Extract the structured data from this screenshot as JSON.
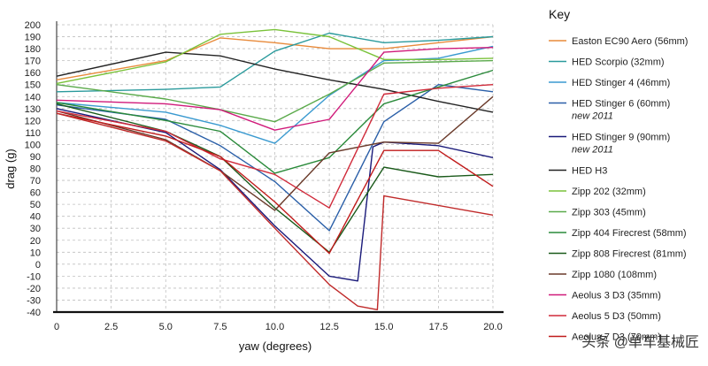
{
  "chart_data": {
    "type": "line",
    "title": "",
    "xlabel": "yaw (degrees)",
    "ylabel": "drag (g)",
    "xlim": [
      0,
      20
    ],
    "ylim": [
      -40,
      200
    ],
    "x_ticks": [
      "0",
      "2.5",
      "5.0",
      "7.5",
      "10.0",
      "12.5",
      "15.0",
      "17.5",
      "20.0"
    ],
    "y_ticks": [
      "200",
      "190",
      "180",
      "170",
      "160",
      "150",
      "140",
      "130",
      "120",
      "110",
      "100",
      "90",
      "80",
      "70",
      "60",
      "50",
      "40",
      "30",
      "20",
      "10",
      "0",
      "-10",
      "-20",
      "-30",
      "-40"
    ],
    "grid": true,
    "legend_title": "Key",
    "legend_position": "right",
    "series": [
      {
        "name": "Easton EC90 Aero (56mm)",
        "color": "#e88a3a",
        "x": [
          0,
          5,
          7.5,
          10,
          12.5,
          15,
          17.5,
          20
        ],
        "values": [
          154,
          170,
          189,
          185,
          180,
          180,
          185,
          190
        ]
      },
      {
        "name": "HED Scorpio (32mm)",
        "color": "#2a9a9c",
        "x": [
          0,
          5,
          7.5,
          10,
          12.5,
          15,
          17.5,
          20
        ],
        "values": [
          144,
          146,
          148,
          178,
          193,
          185,
          187,
          190
        ]
      },
      {
        "name": "HED Stinger 4 (46mm)",
        "color": "#3a9ad0",
        "x": [
          0,
          5,
          7.5,
          10,
          12.5,
          15,
          17.5,
          20
        ],
        "values": [
          135,
          127,
          116,
          101,
          141,
          170,
          172,
          182
        ]
      },
      {
        "name": "HED Stinger 6 (60mm)",
        "note": "new 2011",
        "color": "#2a5fa8",
        "x": [
          0,
          5,
          7.5,
          10,
          12.5,
          15,
          17.5,
          20
        ],
        "values": [
          133,
          121,
          99,
          69,
          28,
          119,
          150,
          144
        ]
      },
      {
        "name": "HED Stinger 9 (90mm)",
        "note": "new 2011",
        "color": "#1a1a7a",
        "x": [
          0,
          5,
          7.5,
          10,
          12.5,
          13.8,
          14.5,
          15,
          17.5,
          20
        ],
        "values": [
          130,
          110,
          79,
          32,
          -10,
          -14,
          98,
          102,
          99,
          89
        ]
      },
      {
        "name": "HED H3",
        "color": "#222222",
        "x": [
          0,
          5,
          7.5,
          10,
          12.5,
          15,
          17.5,
          20
        ],
        "values": [
          157,
          177,
          174,
          163,
          154,
          146,
          136,
          127
        ]
      },
      {
        "name": "Zipp 202 (32mm)",
        "color": "#7ac23a",
        "x": [
          0,
          5,
          7.5,
          10,
          12.5,
          15,
          17.5,
          20
        ],
        "values": [
          151,
          169,
          192,
          196,
          190,
          171,
          171,
          172
        ]
      },
      {
        "name": "Zipp 303 (45mm)",
        "color": "#5aaa4a",
        "x": [
          0,
          5,
          7.5,
          10,
          12.5,
          15,
          17.5,
          20
        ],
        "values": [
          150,
          138,
          129,
          119,
          142,
          168,
          169,
          170
        ]
      },
      {
        "name": "Zipp 404 Firecrest (58mm)",
        "color": "#2a8a3a",
        "x": [
          0,
          5,
          7.5,
          10,
          12.5,
          15,
          17.5,
          20
        ],
        "values": [
          135,
          120,
          111,
          76,
          89,
          134,
          148,
          162
        ]
      },
      {
        "name": "Zipp 808 Firecrest (81mm)",
        "color": "#1a5a1a",
        "x": [
          0,
          5,
          7.5,
          10,
          12.5,
          15,
          17.5,
          20
        ],
        "values": [
          134,
          111,
          90,
          47,
          10,
          81,
          73,
          75
        ]
      },
      {
        "name": "Zipp 1080 (108mm)",
        "color": "#6a3a2a",
        "x": [
          0,
          5,
          7.5,
          10,
          12.5,
          15,
          17.5,
          20
        ],
        "values": [
          128,
          104,
          78,
          45,
          93,
          102,
          101,
          140
        ]
      },
      {
        "name": "Aeolus 3 D3 (35mm)",
        "color": "#d01a7a",
        "x": [
          0,
          5,
          7.5,
          10,
          12.5,
          15,
          17.5,
          20
        ],
        "values": [
          137,
          134,
          129,
          112,
          121,
          177,
          180,
          181
        ]
      },
      {
        "name": "Aeolus 5 D3 (50mm)",
        "color": "#d02a3a",
        "x": [
          0,
          5,
          7.5,
          10,
          12.5,
          15,
          17.5,
          20
        ],
        "values": [
          128,
          111,
          88,
          75,
          47,
          142,
          147,
          150
        ]
      },
      {
        "name": "Aeolus 7 D3 (70mm)",
        "color": "#c01a1a",
        "x": [
          0,
          5,
          7.5,
          10,
          12.5,
          15,
          17.5,
          20
        ],
        "values": [
          126,
          107,
          90,
          52,
          9,
          95,
          95,
          65
        ]
      },
      {
        "name": "Aeolus 7 D3 (70mm) b",
        "color": "#c02a2a",
        "hidden_in_legend": true,
        "x": [
          0,
          5,
          7.5,
          10,
          12.5,
          13.8,
          14.7,
          15,
          20
        ],
        "values": [
          126,
          103,
          78,
          30,
          -17,
          -35,
          -38,
          57,
          41
        ]
      }
    ],
    "watermark": "头条 @单车基械匠"
  }
}
